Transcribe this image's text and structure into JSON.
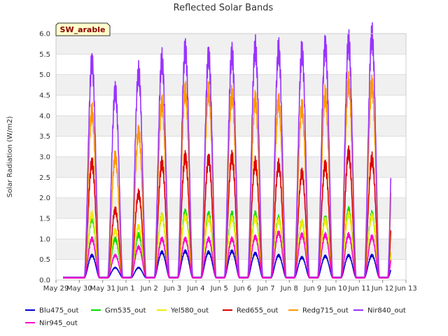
{
  "chart_data": {
    "type": "line",
    "title": "Reflected Solar Bands",
    "ylabel": "Solar Radiation (W/m2)",
    "xlabel": "",
    "badge": "SW_arable",
    "ylim": [
      0,
      6.0
    ],
    "yticks": [
      "0.0",
      "0.5",
      "1.0",
      "1.5",
      "2.0",
      "2.5",
      "3.0",
      "3.5",
      "4.0",
      "4.5",
      "5.0",
      "5.5",
      "6.0"
    ],
    "xticks": [
      "May 29",
      "May 30",
      "May 31",
      "Jun 1",
      "Jun 2",
      "Jun 3",
      "Jun 4",
      "Jun 5",
      "Jun 6",
      "Jun 7",
      "Jun 8",
      "Jun 9",
      "Jun 10",
      "Jun 11",
      "Jun 12",
      "Jun 13"
    ],
    "x_days": [
      "May 30",
      "May 31",
      "Jun 1",
      "Jun 2",
      "Jun 3",
      "Jun 4",
      "Jun 5",
      "Jun 6",
      "Jun 7",
      "Jun 8",
      "Jun 9",
      "Jun 10",
      "Jun 11",
      "Jun 12"
    ],
    "grid": true,
    "legend_position": "bottom",
    "series": [
      {
        "name": "Blu475_out",
        "color": "#0000cc",
        "base": 0.05,
        "daily_peaks": [
          0.6,
          0.3,
          0.3,
          0.68,
          0.7,
          0.68,
          0.7,
          0.65,
          0.6,
          0.55,
          0.58,
          0.6,
          0.6,
          0.5
        ]
      },
      {
        "name": "Grn535_out",
        "color": "#00dd00",
        "base": 0.05,
        "daily_peaks": [
          1.5,
          1.0,
          1.1,
          1.55,
          1.65,
          1.6,
          1.6,
          1.6,
          1.5,
          1.4,
          1.5,
          1.7,
          1.6,
          1.4
        ]
      },
      {
        "name": "Yel580_out",
        "color": "#eeee00",
        "base": 0.05,
        "daily_peaks": [
          1.6,
          1.2,
          1.3,
          1.55,
          1.55,
          1.5,
          1.5,
          1.5,
          1.45,
          1.4,
          1.45,
          1.6,
          1.55,
          1.5
        ]
      },
      {
        "name": "Red655_out",
        "color": "#dd0000",
        "base": 0.05,
        "daily_peaks": [
          2.85,
          1.7,
          2.1,
          2.85,
          3.0,
          2.95,
          3.0,
          2.85,
          2.8,
          2.6,
          2.8,
          3.1,
          2.95,
          2.75
        ]
      },
      {
        "name": "Redg715_out",
        "color": "#ff9900",
        "base": 0.07,
        "daily_peaks": [
          4.1,
          3.0,
          3.6,
          4.3,
          4.6,
          4.6,
          4.5,
          4.4,
          4.35,
          4.2,
          4.5,
          4.8,
          4.75,
          4.65
        ]
      },
      {
        "name": "Nir840_out",
        "color": "#9933ff",
        "base": 0.07,
        "daily_peaks": [
          5.3,
          4.6,
          5.05,
          5.35,
          5.6,
          5.45,
          5.5,
          5.65,
          5.6,
          5.55,
          5.7,
          5.8,
          5.95,
          5.7
        ]
      },
      {
        "name": "Nir945_out",
        "color": "#ff00cc",
        "base": 0.05,
        "daily_peaks": [
          1.0,
          0.6,
          0.8,
          1.0,
          1.0,
          1.0,
          1.0,
          1.05,
          1.15,
          1.1,
          1.1,
          1.1,
          1.05,
          1.05
        ]
      }
    ]
  }
}
